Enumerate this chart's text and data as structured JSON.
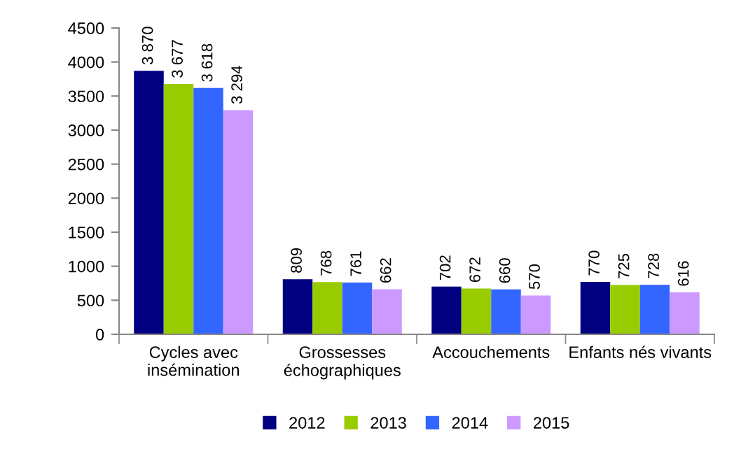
{
  "chart_data": {
    "type": "bar",
    "categories": [
      "Cycles avec\ninsémination",
      "Grossesses\néchographiques",
      "Accouchements",
      "Enfants nés vivants"
    ],
    "series": [
      {
        "name": "2012",
        "color": "#000080",
        "values": [
          3870,
          809,
          702,
          770
        ],
        "value_labels": [
          "3 870",
          "809",
          "702",
          "770"
        ]
      },
      {
        "name": "2013",
        "color": "#99cc00",
        "values": [
          3677,
          768,
          672,
          725
        ],
        "value_labels": [
          "3 677",
          "768",
          "672",
          "725"
        ]
      },
      {
        "name": "2014",
        "color": "#3366ff",
        "values": [
          3618,
          761,
          660,
          728
        ],
        "value_labels": [
          "3 618",
          "761",
          "660",
          "728"
        ]
      },
      {
        "name": "2015",
        "color": "#cc99ff",
        "values": [
          3294,
          662,
          570,
          616
        ],
        "value_labels": [
          "3 294",
          "662",
          "570",
          "616"
        ]
      }
    ],
    "ylim": [
      0,
      4500
    ],
    "yticks": [
      0,
      500,
      1000,
      1500,
      2000,
      2500,
      3000,
      3500,
      4000,
      4500
    ],
    "grid": false,
    "legend": "bottom"
  }
}
